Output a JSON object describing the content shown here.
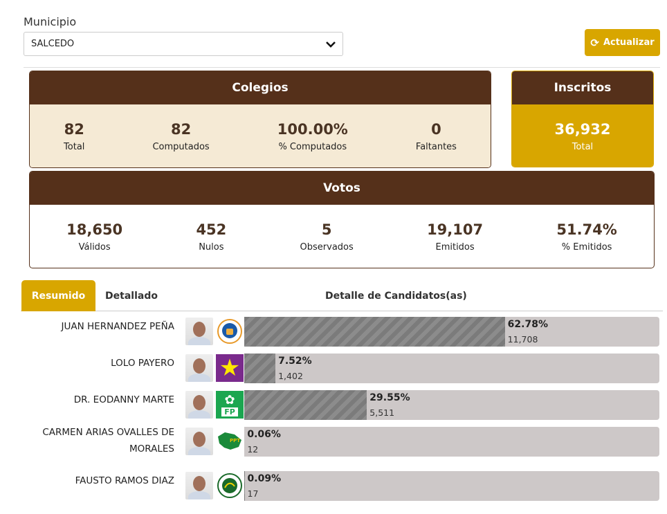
{
  "filter": {
    "label": "Municipio",
    "selected": "SALCEDO"
  },
  "refresh_label": "Actualizar",
  "colegios": {
    "title": "Colegios",
    "stats": [
      {
        "value": "82",
        "label": "Total"
      },
      {
        "value": "82",
        "label": "Computados"
      },
      {
        "value": "100.00%",
        "label": "% Computados"
      },
      {
        "value": "0",
        "label": "Faltantes"
      }
    ]
  },
  "inscritos": {
    "title": "Inscritos",
    "value": "36,932",
    "label": "Total"
  },
  "votos": {
    "title": "Votos",
    "stats": [
      {
        "value": "18,650",
        "label": "Válidos"
      },
      {
        "value": "452",
        "label": "Nulos"
      },
      {
        "value": "5",
        "label": "Observados"
      },
      {
        "value": "19,107",
        "label": "Emitidos"
      },
      {
        "value": "51.74%",
        "label": "% Emitidos"
      }
    ]
  },
  "tabs": [
    "Resumido",
    "Detallado"
  ],
  "detail_title": "Detalle de Candidatos(as)",
  "candidates": [
    {
      "name": "JUAN HERNANDEZ PEÑA",
      "party": "PRM",
      "percent": 62.78,
      "pct_label": "62.78%",
      "votes": "11,708"
    },
    {
      "name": "LOLO PAYERO",
      "party": "PLD",
      "percent": 7.52,
      "pct_label": "7.52%",
      "votes": "1,402"
    },
    {
      "name": "DR. EODANNY MARTE",
      "party": "FP",
      "percent": 29.55,
      "pct_label": "29.55%",
      "votes": "5,511"
    },
    {
      "name": "CARMEN ARIAS OVALLES DE MORALES",
      "party": "PPT",
      "percent": 0.06,
      "pct_label": "0.06%",
      "votes": "12"
    },
    {
      "name": "FAUSTO RAMOS DIAZ",
      "party": "other",
      "percent": 0.09,
      "pct_label": "0.09%",
      "votes": "17"
    }
  ],
  "colors": {
    "brown": "#55301a",
    "gold": "#d8a600",
    "cream": "#f5ead5"
  }
}
